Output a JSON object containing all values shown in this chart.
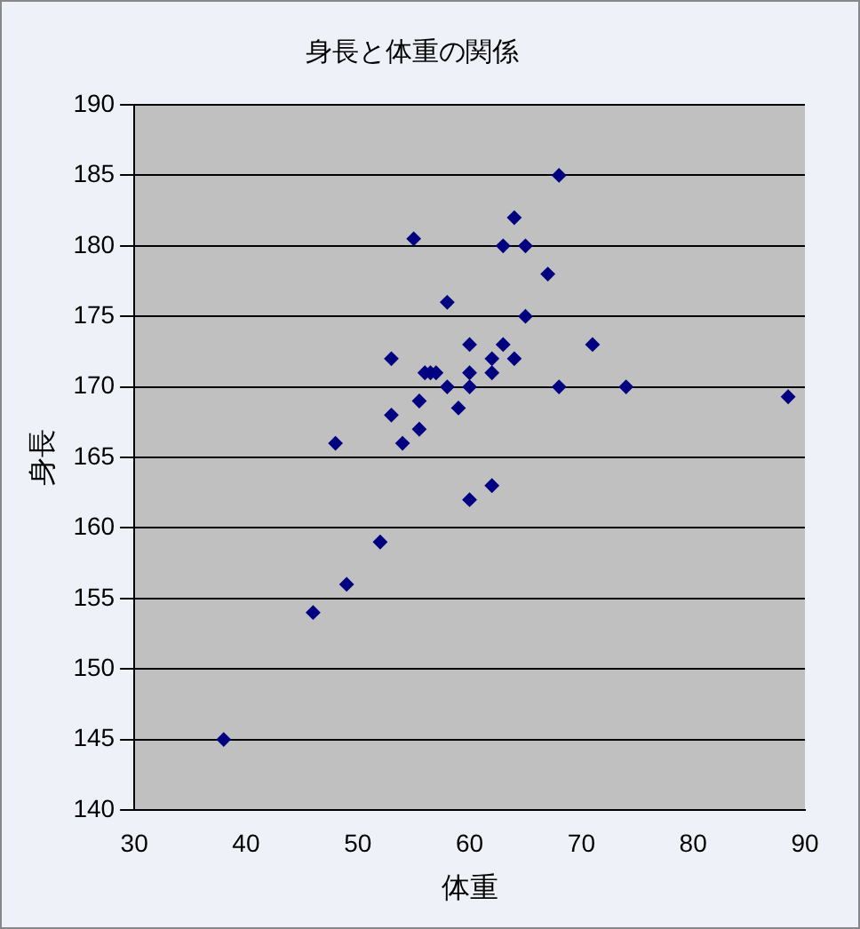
{
  "chart_data": {
    "type": "scatter",
    "title": "身長と体重の関係",
    "xlabel": "体重",
    "ylabel": "身長",
    "xlim": [
      30,
      90
    ],
    "xticks": [
      30,
      40,
      50,
      60,
      70,
      80,
      90
    ],
    "ylim": [
      140,
      190
    ],
    "yticks": [
      140,
      145,
      150,
      155,
      160,
      165,
      170,
      175,
      180,
      185,
      190
    ],
    "grid": "y",
    "legend": false,
    "marker": "diamond",
    "series": [
      {
        "color": "#000080",
        "x": [
          38,
          46,
          49,
          52,
          48,
          53,
          53,
          54,
          55,
          55.5,
          55.5,
          56,
          56.5,
          57,
          58,
          58,
          59,
          60,
          60,
          60,
          60,
          62,
          62,
          62,
          63,
          63,
          64,
          64,
          65,
          65,
          67,
          68,
          68,
          71,
          74,
          88.5
        ],
        "values": [
          145,
          154,
          156,
          159,
          166,
          172,
          168,
          166,
          180.5,
          167,
          169,
          171,
          171,
          171,
          176,
          170,
          168.5,
          162,
          173,
          171,
          170,
          163,
          172,
          171,
          180,
          173,
          182,
          172,
          180,
          175,
          178,
          185,
          170,
          173,
          170,
          169.3
        ]
      }
    ]
  }
}
